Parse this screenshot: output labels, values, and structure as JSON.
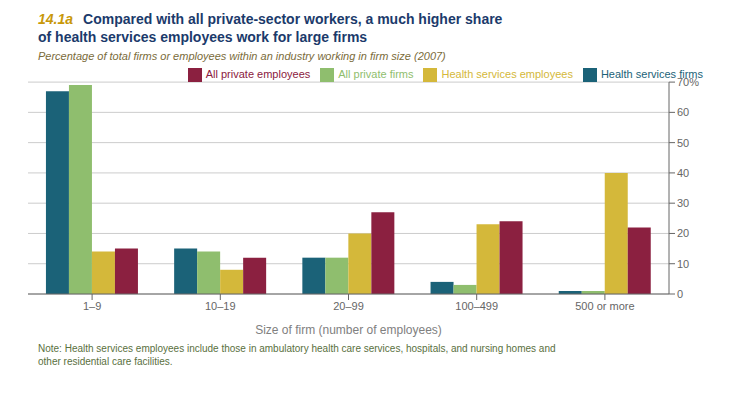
{
  "chart_data": {
    "type": "bar",
    "title": "Compared with all private-sector workers, a much higher share\nof health services employees work for large firms",
    "subtitle": "Percentage of total firms or employees within an industry working in firm size (2007)",
    "annotations": [
      "14.1a",
      "Note: Health services employees include those in ambulatory health care services, hospitals, and nursing homes and\nother residential care facilities."
    ],
    "xlabel": "Size of firm (number of employees)",
    "categories": [
      "1–9",
      "10–19",
      "20–99",
      "100–499",
      "500 or more"
    ],
    "series": [
      {
        "name": "Health services firms",
        "color": "#1b6278",
        "values": [
          67,
          15,
          12,
          4,
          1
        ]
      },
      {
        "name": "All private firms",
        "color": "#8fbe6e",
        "values": [
          69,
          14,
          12,
          3,
          1
        ]
      },
      {
        "name": "Health services employees",
        "color": "#d4b83a",
        "values": [
          14,
          8,
          20,
          23,
          40
        ]
      },
      {
        "name": "All private employees",
        "color": "#8b2040",
        "values": [
          15,
          12,
          27,
          24,
          22
        ]
      }
    ],
    "ylim": [
      0,
      70
    ],
    "yticks": [
      0,
      10,
      20,
      30,
      40,
      50,
      60,
      {
        "value": 70,
        "label": "70%"
      }
    ],
    "grid": true,
    "legend": "upper right"
  }
}
